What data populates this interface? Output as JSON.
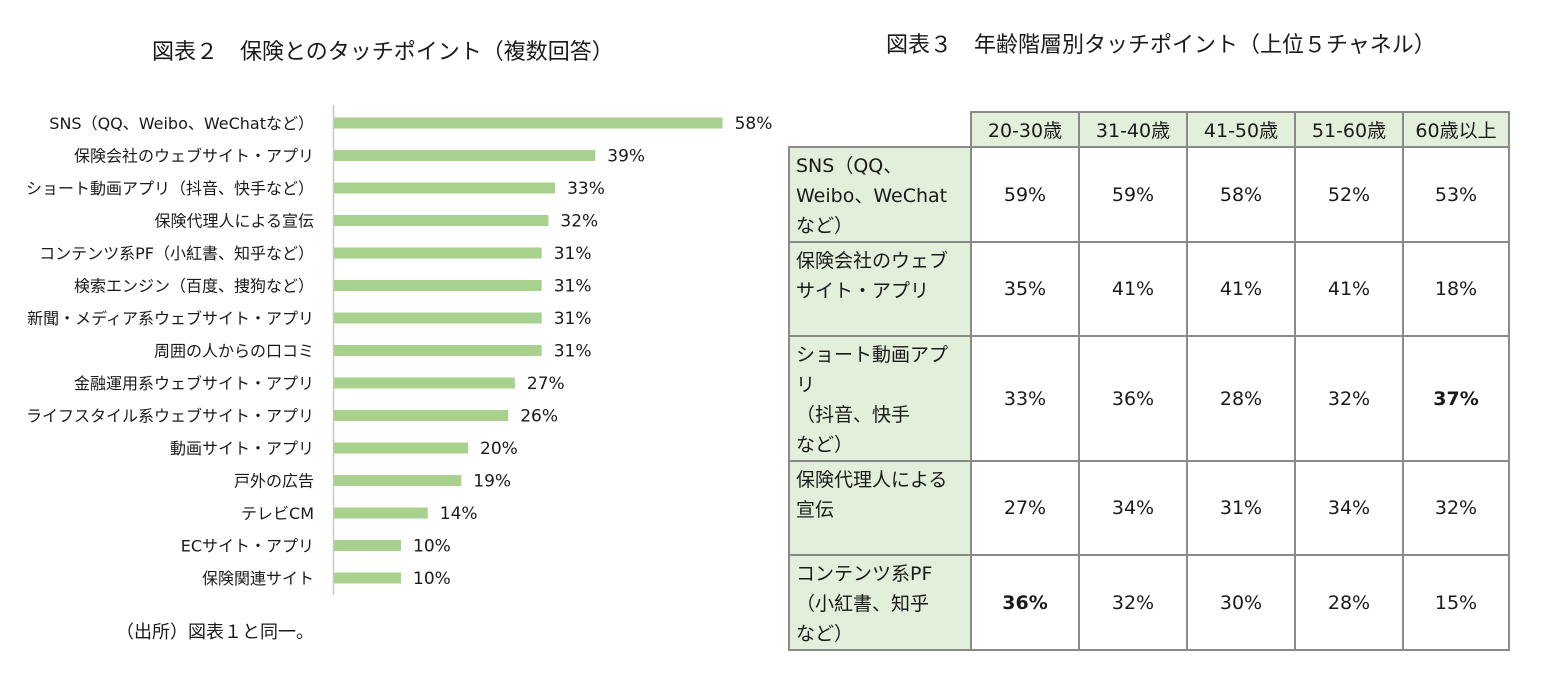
{
  "chart2": {
    "title": "図表２　保険とのタッチポイント（複数回答）",
    "source": "（出所）図表１と同一。",
    "chart_data": {
      "type": "bar",
      "orientation": "horizontal",
      "title": "図表２　保険とのタッチポイント（複数回答）",
      "categories": [
        "SNS（QQ、Weibo、WeChatなど）",
        "保険会社のウェブサイト・アプリ",
        "ショート動画アプリ（抖音、快手など）",
        "保険代理人による宣伝",
        "コンテンツ系PF（小紅書、知乎など）",
        "検索エンジン（百度、捜狗など）",
        "新聞・メディア系ウェブサイト・アプリ",
        "周囲の人からの口コミ",
        "金融運用系ウェブサイト・アプリ",
        "ライフスタイル系ウェブサイト・アプリ",
        "動画サイト・アプリ",
        "戸外の広告",
        "テレビCM",
        "ECサイト・アプリ",
        "保険関連サイト"
      ],
      "values": [
        58,
        39,
        33,
        32,
        31,
        31,
        31,
        31,
        27,
        26,
        20,
        19,
        14,
        10,
        10
      ],
      "value_labels": [
        "58%",
        "39%",
        "33%",
        "32%",
        "31%",
        "31%",
        "31%",
        "31%",
        "27%",
        "26%",
        "20%",
        "19%",
        "14%",
        "10%",
        "10%"
      ],
      "xlim": [
        0,
        100
      ],
      "bar_color": "#a9d18e",
      "grid": false
    }
  },
  "chart3": {
    "title": "図表３　年齢階層別タッチポイント（上位５チャネル）",
    "chart_data": {
      "type": "table",
      "title": "図表３　年齢階層別タッチポイント（上位５チャネル）",
      "columns": [
        "20-30歳",
        "31-40歳",
        "41-50歳",
        "51-60歳",
        "60歳以上"
      ],
      "rows": [
        {
          "label": "SNS（QQ、\nWeibo、WeChat\nなど）",
          "values": [
            "59%",
            "59%",
            "58%",
            "52%",
            "53%"
          ],
          "bold": [
            false,
            false,
            false,
            false,
            false
          ]
        },
        {
          "label": "保険会社のウェブ\nサイト・アプリ",
          "values": [
            "35%",
            "41%",
            "41%",
            "41%",
            "18%"
          ],
          "bold": [
            false,
            false,
            false,
            false,
            false
          ]
        },
        {
          "label": "ショート動画アプリ\n（抖音、快手\nなど）",
          "values": [
            "33%",
            "36%",
            "28%",
            "32%",
            "37%"
          ],
          "bold": [
            false,
            false,
            false,
            false,
            true
          ]
        },
        {
          "label": "保険代理人による\n宣伝",
          "values": [
            "27%",
            "34%",
            "31%",
            "34%",
            "32%"
          ],
          "bold": [
            false,
            false,
            false,
            false,
            false
          ]
        },
        {
          "label": "コンテンツ系PF\n（小紅書、知乎\nなど）",
          "values": [
            "36%",
            "32%",
            "30%",
            "28%",
            "15%"
          ],
          "bold": [
            true,
            false,
            false,
            false,
            false
          ]
        }
      ],
      "header_color": "#e2efda"
    }
  }
}
